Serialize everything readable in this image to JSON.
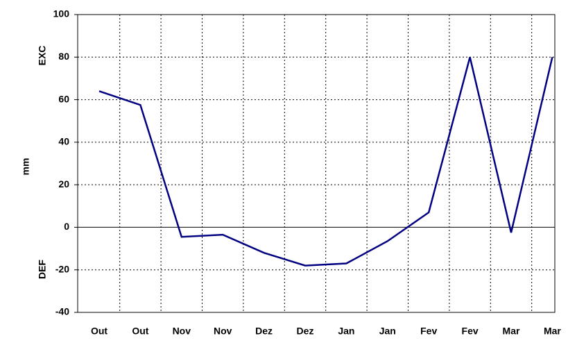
{
  "chart_data": {
    "type": "line",
    "y_label": "mm",
    "upper_label": "EXC",
    "lower_label": "DEF",
    "categories": [
      "Out",
      "Out",
      "Nov",
      "Nov",
      "Dez",
      "Dez",
      "Jan",
      "Jan",
      "Fev",
      "Fev",
      "Mar",
      "Mar"
    ],
    "series": [
      {
        "color": "#000080",
        "values": [
          64,
          57.5,
          -4.5,
          -3.5,
          -12,
          -18,
          -17,
          -6.5,
          7,
          80,
          -2.5,
          80
        ]
      }
    ],
    "ylim": [
      -40,
      100
    ],
    "yticks": [
      -40,
      -20,
      0,
      20,
      40,
      60,
      80,
      100
    ],
    "grid": true
  }
}
